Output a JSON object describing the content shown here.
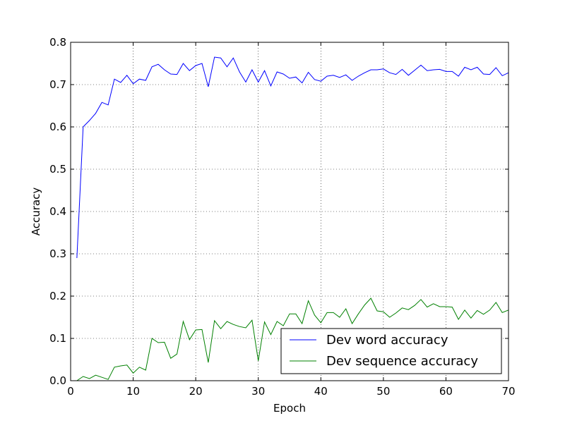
{
  "chart_data": {
    "type": "line",
    "title": "",
    "xlabel": "Epoch",
    "ylabel": "Accuracy",
    "xlim": [
      0,
      70
    ],
    "ylim": [
      0,
      0.8
    ],
    "xticks": [
      "0",
      "10",
      "20",
      "30",
      "40",
      "50",
      "60",
      "70"
    ],
    "yticks": [
      "0.0",
      "0.1",
      "0.2",
      "0.3",
      "0.4",
      "0.5",
      "0.6",
      "0.7",
      "0.8"
    ],
    "grid": true,
    "legend_position": "lower-right",
    "series": [
      {
        "name": "Dev word accuracy",
        "color": "#0000ff",
        "x": [
          1,
          2,
          3,
          4,
          5,
          6,
          7,
          8,
          9,
          10,
          11,
          12,
          13,
          14,
          15,
          16,
          17,
          18,
          19,
          20,
          21,
          22,
          23,
          24,
          25,
          26,
          27,
          28,
          29,
          30,
          31,
          32,
          33,
          34,
          35,
          36,
          37,
          38,
          39,
          40,
          41,
          42,
          43,
          44,
          45,
          46,
          47,
          48,
          49,
          50,
          51,
          52,
          53,
          54,
          55,
          56,
          57,
          58,
          59,
          60,
          61,
          62,
          63,
          64,
          65,
          66,
          67,
          68,
          69,
          70
        ],
        "values": [
          0.29,
          0.6,
          0.615,
          0.632,
          0.658,
          0.652,
          0.713,
          0.705,
          0.722,
          0.702,
          0.713,
          0.71,
          0.742,
          0.748,
          0.735,
          0.725,
          0.724,
          0.75,
          0.733,
          0.745,
          0.75,
          0.695,
          0.765,
          0.763,
          0.742,
          0.763,
          0.73,
          0.706,
          0.735,
          0.706,
          0.733,
          0.697,
          0.73,
          0.725,
          0.715,
          0.718,
          0.704,
          0.729,
          0.712,
          0.708,
          0.72,
          0.722,
          0.717,
          0.723,
          0.71,
          0.72,
          0.728,
          0.735,
          0.735,
          0.737,
          0.728,
          0.724,
          0.736,
          0.722,
          0.734,
          0.746,
          0.733,
          0.735,
          0.736,
          0.731,
          0.731,
          0.72,
          0.741,
          0.735,
          0.741,
          0.725,
          0.724,
          0.74,
          0.721,
          0.728
        ]
      },
      {
        "name": "Dev sequence accuracy",
        "color": "#008000",
        "x": [
          1,
          2,
          3,
          4,
          5,
          6,
          7,
          8,
          9,
          10,
          11,
          12,
          13,
          14,
          15,
          16,
          17,
          18,
          19,
          20,
          21,
          22,
          23,
          24,
          25,
          26,
          27,
          28,
          29,
          30,
          31,
          32,
          33,
          34,
          35,
          36,
          37,
          38,
          39,
          40,
          41,
          42,
          43,
          44,
          45,
          46,
          47,
          48,
          49,
          50,
          51,
          52,
          53,
          54,
          55,
          56,
          57,
          58,
          59,
          60,
          61,
          62,
          63,
          64,
          65,
          66,
          67,
          68,
          69,
          70
        ],
        "values": [
          0.0,
          0.01,
          0.005,
          0.013,
          0.008,
          0.003,
          0.032,
          0.035,
          0.037,
          0.018,
          0.032,
          0.025,
          0.1,
          0.09,
          0.091,
          0.053,
          0.063,
          0.14,
          0.097,
          0.12,
          0.121,
          0.043,
          0.142,
          0.123,
          0.14,
          0.133,
          0.128,
          0.125,
          0.143,
          0.047,
          0.139,
          0.109,
          0.14,
          0.13,
          0.158,
          0.158,
          0.135,
          0.189,
          0.155,
          0.137,
          0.161,
          0.161,
          0.15,
          0.17,
          0.135,
          0.158,
          0.179,
          0.195,
          0.165,
          0.163,
          0.15,
          0.16,
          0.172,
          0.168,
          0.178,
          0.192,
          0.174,
          0.182,
          0.175,
          0.175,
          0.174,
          0.145,
          0.167,
          0.148,
          0.166,
          0.157,
          0.167,
          0.185,
          0.161,
          0.167
        ]
      }
    ]
  }
}
